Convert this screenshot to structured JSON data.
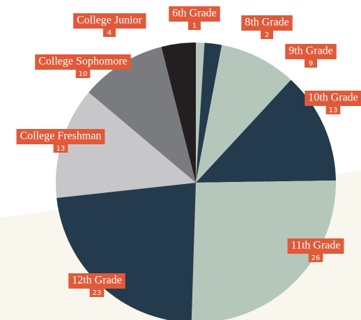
{
  "chart_data": {
    "type": "pie",
    "categories": [
      "6th Grade",
      "8th Grade",
      "9th Grade",
      "10th Grade",
      "11th Grade",
      "12th Grade",
      "College Freshman",
      "College Sophomore",
      "College Junior"
    ],
    "values": [
      1,
      2,
      9,
      13,
      26,
      23,
      13,
      10,
      4
    ],
    "colors": [
      "#b5c7ba",
      "#243b4e",
      "#b5c7ba",
      "#243b4e",
      "#b5c7ba",
      "#243b4e",
      "#c7c7c9",
      "#7a7b7e",
      "#231f20"
    ],
    "label_color": "#e05a3a"
  }
}
